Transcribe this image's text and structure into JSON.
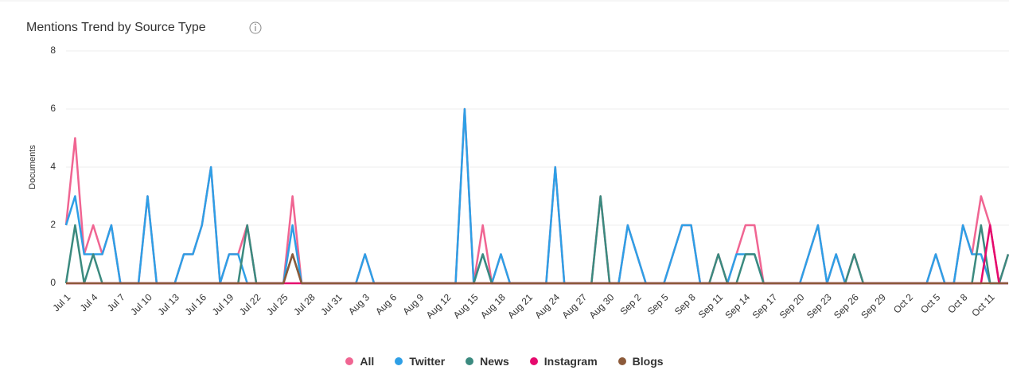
{
  "chart_data": {
    "type": "line",
    "title": "Mentions Trend by Source Type",
    "y_label": "Documents",
    "categories": [
      "Jul 1",
      null,
      null,
      "Jul 4",
      null,
      null,
      "Jul 7",
      null,
      null,
      "Jul 10",
      null,
      null,
      "Jul 13",
      null,
      null,
      "Jul 16",
      null,
      null,
      "Jul 19",
      null,
      null,
      "Jul 22",
      null,
      null,
      "Jul 25",
      null,
      null,
      "Jul 28",
      null,
      null,
      "Jul 31",
      null,
      null,
      "Aug 3",
      null,
      null,
      "Aug 6",
      null,
      null,
      "Aug 9",
      null,
      null,
      "Aug 12",
      null,
      null,
      "Aug 15",
      null,
      null,
      "Aug 18",
      null,
      null,
      "Aug 21",
      null,
      null,
      "Aug 24",
      null,
      null,
      "Aug 27",
      null,
      null,
      "Aug 30",
      null,
      null,
      "Sep 2",
      null,
      null,
      "Sep 5",
      null,
      null,
      "Sep 8",
      null,
      null,
      "Sep 11",
      null,
      null,
      "Sep 14",
      null,
      null,
      "Sep 17",
      null,
      null,
      "Sep 20",
      null,
      null,
      "Sep 23",
      null,
      null,
      "Sep 26",
      null,
      null,
      "Sep 29",
      null,
      null,
      "Oct 2",
      null,
      null,
      "Oct 5",
      null,
      null,
      "Oct 8",
      null,
      null,
      "Oct 11",
      null,
      null
    ],
    "series": [
      {
        "name": "All",
        "color": "#f06592",
        "values": [
          2,
          5,
          1,
          2,
          1,
          2,
          0,
          0,
          0,
          3,
          0,
          0,
          0,
          1,
          1,
          2,
          4,
          0,
          1,
          1,
          2,
          0,
          0,
          0,
          0,
          3,
          0,
          0,
          0,
          0,
          0,
          0,
          0,
          1,
          0,
          0,
          0,
          0,
          0,
          0,
          0,
          0,
          0,
          0,
          6,
          0,
          2,
          0,
          1,
          0,
          0,
          0,
          0,
          0,
          4,
          0,
          0,
          0,
          0,
          3,
          0,
          0,
          2,
          1,
          0,
          0,
          0,
          1,
          2,
          2,
          0,
          0,
          1,
          0,
          1,
          2,
          2,
          0,
          0,
          0,
          0,
          0,
          1,
          2,
          0,
          1,
          0,
          1,
          0,
          0,
          0,
          0,
          0,
          0,
          0,
          0,
          1,
          0,
          0,
          2,
          1,
          3,
          2,
          0,
          1
        ]
      },
      {
        "name": "Twitter",
        "color": "#2e9fe6",
        "values": [
          2,
          3,
          1,
          1,
          1,
          2,
          0,
          0,
          0,
          3,
          0,
          0,
          0,
          1,
          1,
          2,
          4,
          0,
          1,
          1,
          0,
          0,
          0,
          0,
          0,
          2,
          0,
          0,
          0,
          0,
          0,
          0,
          0,
          1,
          0,
          0,
          0,
          0,
          0,
          0,
          0,
          0,
          0,
          0,
          6,
          0,
          1,
          0,
          1,
          0,
          0,
          0,
          0,
          0,
          4,
          0,
          0,
          0,
          0,
          0,
          0,
          0,
          2,
          1,
          0,
          0,
          0,
          1,
          2,
          2,
          0,
          0,
          0,
          0,
          1,
          1,
          1,
          0,
          0,
          0,
          0,
          0,
          1,
          2,
          0,
          1,
          0,
          0,
          0,
          0,
          0,
          0,
          0,
          0,
          0,
          0,
          1,
          0,
          0,
          2,
          1,
          1,
          0,
          0,
          0
        ]
      },
      {
        "name": "News",
        "color": "#3b8a7f",
        "values": [
          0,
          2,
          0,
          1,
          0,
          0,
          0,
          0,
          0,
          0,
          0,
          0,
          0,
          0,
          0,
          0,
          0,
          0,
          0,
          0,
          2,
          0,
          0,
          0,
          0,
          1,
          0,
          0,
          0,
          0,
          0,
          0,
          0,
          0,
          0,
          0,
          0,
          0,
          0,
          0,
          0,
          0,
          0,
          0,
          0,
          0,
          1,
          0,
          0,
          0,
          0,
          0,
          0,
          0,
          0,
          0,
          0,
          0,
          0,
          3,
          0,
          0,
          0,
          0,
          0,
          0,
          0,
          0,
          0,
          0,
          0,
          0,
          1,
          0,
          0,
          1,
          1,
          0,
          0,
          0,
          0,
          0,
          0,
          0,
          0,
          0,
          0,
          1,
          0,
          0,
          0,
          0,
          0,
          0,
          0,
          0,
          0,
          0,
          0,
          0,
          0,
          2,
          0,
          0,
          1
        ]
      },
      {
        "name": "Instagram",
        "color": "#e5096d",
        "values": [
          0,
          0,
          0,
          0,
          0,
          0,
          0,
          0,
          0,
          0,
          0,
          0,
          0,
          0,
          0,
          0,
          0,
          0,
          0,
          0,
          0,
          0,
          0,
          0,
          0,
          0,
          0,
          0,
          0,
          0,
          0,
          0,
          0,
          0,
          0,
          0,
          0,
          0,
          0,
          0,
          0,
          0,
          0,
          0,
          0,
          0,
          0,
          0,
          0,
          0,
          0,
          0,
          0,
          0,
          0,
          0,
          0,
          0,
          0,
          0,
          0,
          0,
          0,
          0,
          0,
          0,
          0,
          0,
          0,
          0,
          0,
          0,
          0,
          0,
          0,
          0,
          0,
          0,
          0,
          0,
          0,
          0,
          0,
          0,
          0,
          0,
          0,
          0,
          0,
          0,
          0,
          0,
          0,
          0,
          0,
          0,
          0,
          0,
          0,
          0,
          0,
          0,
          2,
          0,
          0
        ]
      },
      {
        "name": "Blogs",
        "color": "#8c5a3a",
        "values": [
          0,
          0,
          0,
          0,
          0,
          0,
          0,
          0,
          0,
          0,
          0,
          0,
          0,
          0,
          0,
          0,
          0,
          0,
          0,
          0,
          0,
          0,
          0,
          0,
          0,
          1,
          0,
          0,
          0,
          0,
          0,
          0,
          0,
          0,
          0,
          0,
          0,
          0,
          0,
          0,
          0,
          0,
          0,
          0,
          0,
          0,
          0,
          0,
          0,
          0,
          0,
          0,
          0,
          0,
          0,
          0,
          0,
          0,
          0,
          0,
          0,
          0,
          0,
          0,
          0,
          0,
          0,
          0,
          0,
          0,
          0,
          0,
          0,
          0,
          0,
          0,
          0,
          0,
          0,
          0,
          0,
          0,
          0,
          0,
          0,
          0,
          0,
          0,
          0,
          0,
          0,
          0,
          0,
          0,
          0,
          0,
          0,
          0,
          0,
          0,
          0,
          0,
          0,
          0,
          0
        ]
      }
    ],
    "ylim": [
      0,
      8
    ],
    "yticks": [
      0,
      2,
      4,
      6,
      8
    ],
    "grid": true,
    "legend": "bottom"
  }
}
